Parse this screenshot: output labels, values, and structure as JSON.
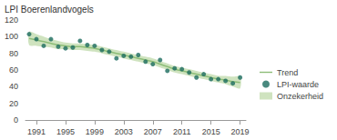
{
  "chart_data": {
    "type": "line",
    "title": "LPI Boerenlandvogels",
    "x": [
      1990,
      1991,
      1992,
      1993,
      1994,
      1995,
      1996,
      1997,
      1998,
      1999,
      2000,
      2001,
      2002,
      2003,
      2004,
      2005,
      2006,
      2007,
      2008,
      2009,
      2010,
      2011,
      2012,
      2013,
      2014,
      2015,
      2016,
      2017,
      2018,
      2019
    ],
    "xlim": [
      1989.5,
      2019.8
    ],
    "xticks": [
      1991,
      1995,
      1999,
      2003,
      2007,
      2011,
      2015,
      2019
    ],
    "ylim": [
      0,
      120
    ],
    "yticks": [
      0,
      20,
      40,
      60,
      80,
      100,
      120
    ],
    "grid": false,
    "legend": "right",
    "series": [
      {
        "name": "Trend",
        "type": "line",
        "color": "#8dbd78",
        "values": [
          98,
          96,
          94,
          92,
          90,
          89,
          88,
          88,
          87,
          86,
          84,
          82,
          80,
          78,
          76,
          74,
          72,
          70,
          67,
          64,
          61,
          59,
          57,
          55,
          53,
          51,
          49,
          48,
          46,
          45
        ]
      },
      {
        "name": "LPI-waarde",
        "type": "scatter",
        "color": "#1b6b5e",
        "marker": "circle",
        "values": [
          103,
          97,
          89,
          97,
          88,
          86,
          87,
          95,
          90,
          89,
          84,
          82,
          74,
          77,
          76,
          78,
          70,
          67,
          72,
          59,
          62,
          61,
          57,
          51,
          55,
          49,
          49,
          47,
          44,
          51
        ]
      },
      {
        "name": "Onzekerheid",
        "type": "band",
        "color": "#cfe3bf",
        "lower": [
          90,
          89,
          88,
          87,
          85,
          85,
          84,
          84,
          83,
          82,
          80,
          78,
          76,
          74,
          72,
          70,
          68,
          66,
          63,
          60,
          57,
          55,
          53,
          51,
          49,
          47,
          45,
          43,
          40,
          38
        ],
        "upper": [
          106,
          103,
          100,
          97,
          95,
          93,
          92,
          92,
          91,
          90,
          88,
          86,
          84,
          82,
          80,
          78,
          76,
          74,
          71,
          68,
          65,
          63,
          61,
          59,
          57,
          55,
          53,
          53,
          52,
          52
        ]
      }
    ]
  }
}
